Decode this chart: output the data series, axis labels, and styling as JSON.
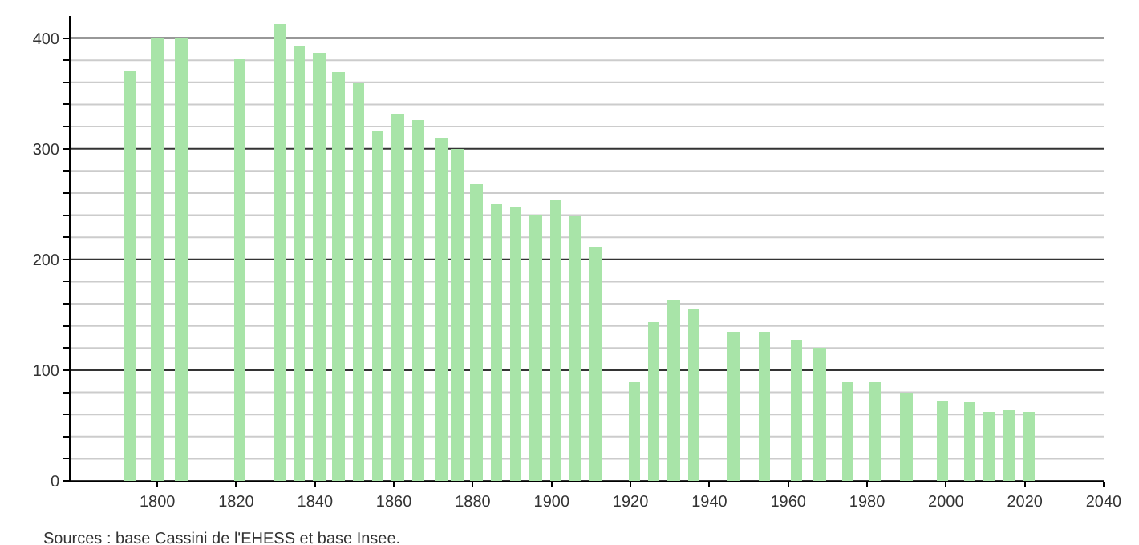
{
  "chart_data": {
    "type": "bar",
    "x": [
      1793,
      1800,
      1806,
      1821,
      1831,
      1836,
      1841,
      1846,
      1851,
      1856,
      1861,
      1866,
      1872,
      1876,
      1881,
      1886,
      1891,
      1896,
      1901,
      1906,
      1911,
      1921,
      1926,
      1931,
      1936,
      1946,
      1954,
      1962,
      1968,
      1975,
      1982,
      1990,
      1999,
      2006,
      2011,
      2016,
      2021
    ],
    "values": [
      371,
      400,
      400,
      381,
      413,
      393,
      386,
      370,
      359,
      316,
      332,
      326,
      310,
      300,
      268,
      250,
      247,
      241,
      253,
      239,
      211,
      90,
      143,
      163,
      155,
      135,
      134,
      128,
      120,
      90,
      90,
      80,
      73,
      71,
      63,
      64,
      63
    ],
    "color": "#a8e4a8",
    "xlim": [
      1778,
      2040
    ],
    "xticks": [
      1800,
      1820,
      1840,
      1860,
      1880,
      1900,
      1920,
      1940,
      1960,
      1980,
      2000,
      2020,
      2040
    ],
    "ylim": [
      0,
      420
    ],
    "yticks": [
      0,
      {
        "value": 20,
        "label": null
      },
      {
        "value": 40,
        "label": null
      },
      {
        "value": 60,
        "label": null
      },
      {
        "value": 80,
        "label": null
      },
      100,
      {
        "value": 120,
        "label": null
      },
      {
        "value": 140,
        "label": null
      },
      {
        "value": 160,
        "label": null
      },
      {
        "value": 180,
        "label": null
      },
      200,
      {
        "value": 220,
        "label": null
      },
      {
        "value": 240,
        "label": null
      },
      {
        "value": 260,
        "label": null
      },
      {
        "value": 280,
        "label": null
      },
      300,
      {
        "value": 320,
        "label": null
      },
      {
        "value": 340,
        "label": null
      },
      {
        "value": 360,
        "label": null
      },
      {
        "value": 380,
        "label": null
      },
      400
    ],
    "grid": "y",
    "annotations": [
      "Sources : base Cassini de l'EHESS et base Insee."
    ]
  }
}
